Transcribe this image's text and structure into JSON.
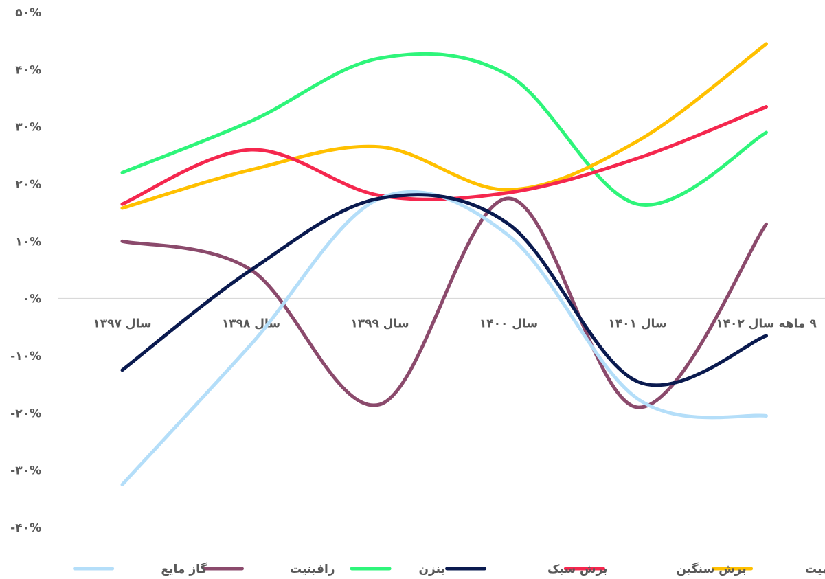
{
  "chart_data": {
    "type": "line",
    "smooth": true,
    "categories": [
      "سال ۱۳۹۷",
      "سال ۱۳۹۸",
      "سال ۱۳۹۹",
      "سال ۱۴۰۰",
      "سال ۱۴۰۱",
      "۹ ماهه سال ۱۴۰۲"
    ],
    "ylim": [
      -40,
      50
    ],
    "yticks": [
      50,
      40,
      30,
      20,
      10,
      0,
      -10,
      -20,
      -30,
      -40
    ],
    "ytick_labels": [
      "۵۰%",
      "۴۰%",
      "۳۰%",
      "۲۰%",
      "۱۰%",
      "۰%",
      "-۱۰%",
      "-۲۰%",
      "-۳۰%",
      "-۴۰%"
    ],
    "grid": false,
    "legend_position": "bottom",
    "series": [
      {
        "name": "ریفرمیت",
        "color": "#FFC000",
        "values": [
          15.8,
          22.5,
          26.5,
          19.0,
          27.5,
          44.5
        ]
      },
      {
        "name": "برش سنگین",
        "color": "#F5274E",
        "values": [
          16.5,
          26.0,
          18.0,
          18.5,
          24.5,
          33.5
        ]
      },
      {
        "name": "برش سبک",
        "color": "#0A1A4F",
        "values": [
          -12.5,
          5.0,
          17.5,
          13.0,
          -14.5,
          -6.5
        ]
      },
      {
        "name": "بنزن",
        "color": "#2EF57A",
        "values": [
          22.0,
          31.0,
          42.0,
          39.0,
          16.5,
          29.0
        ]
      },
      {
        "name": "رافینیت",
        "color": "#8B4A6C",
        "values": [
          10.0,
          5.0,
          -18.5,
          17.5,
          -19.0,
          13.0
        ]
      },
      {
        "name": "گاز مایع",
        "color": "#B4DEF9",
        "values": [
          -32.5,
          -8.0,
          17.5,
          11.0,
          -17.5,
          -20.5
        ]
      }
    ]
  }
}
